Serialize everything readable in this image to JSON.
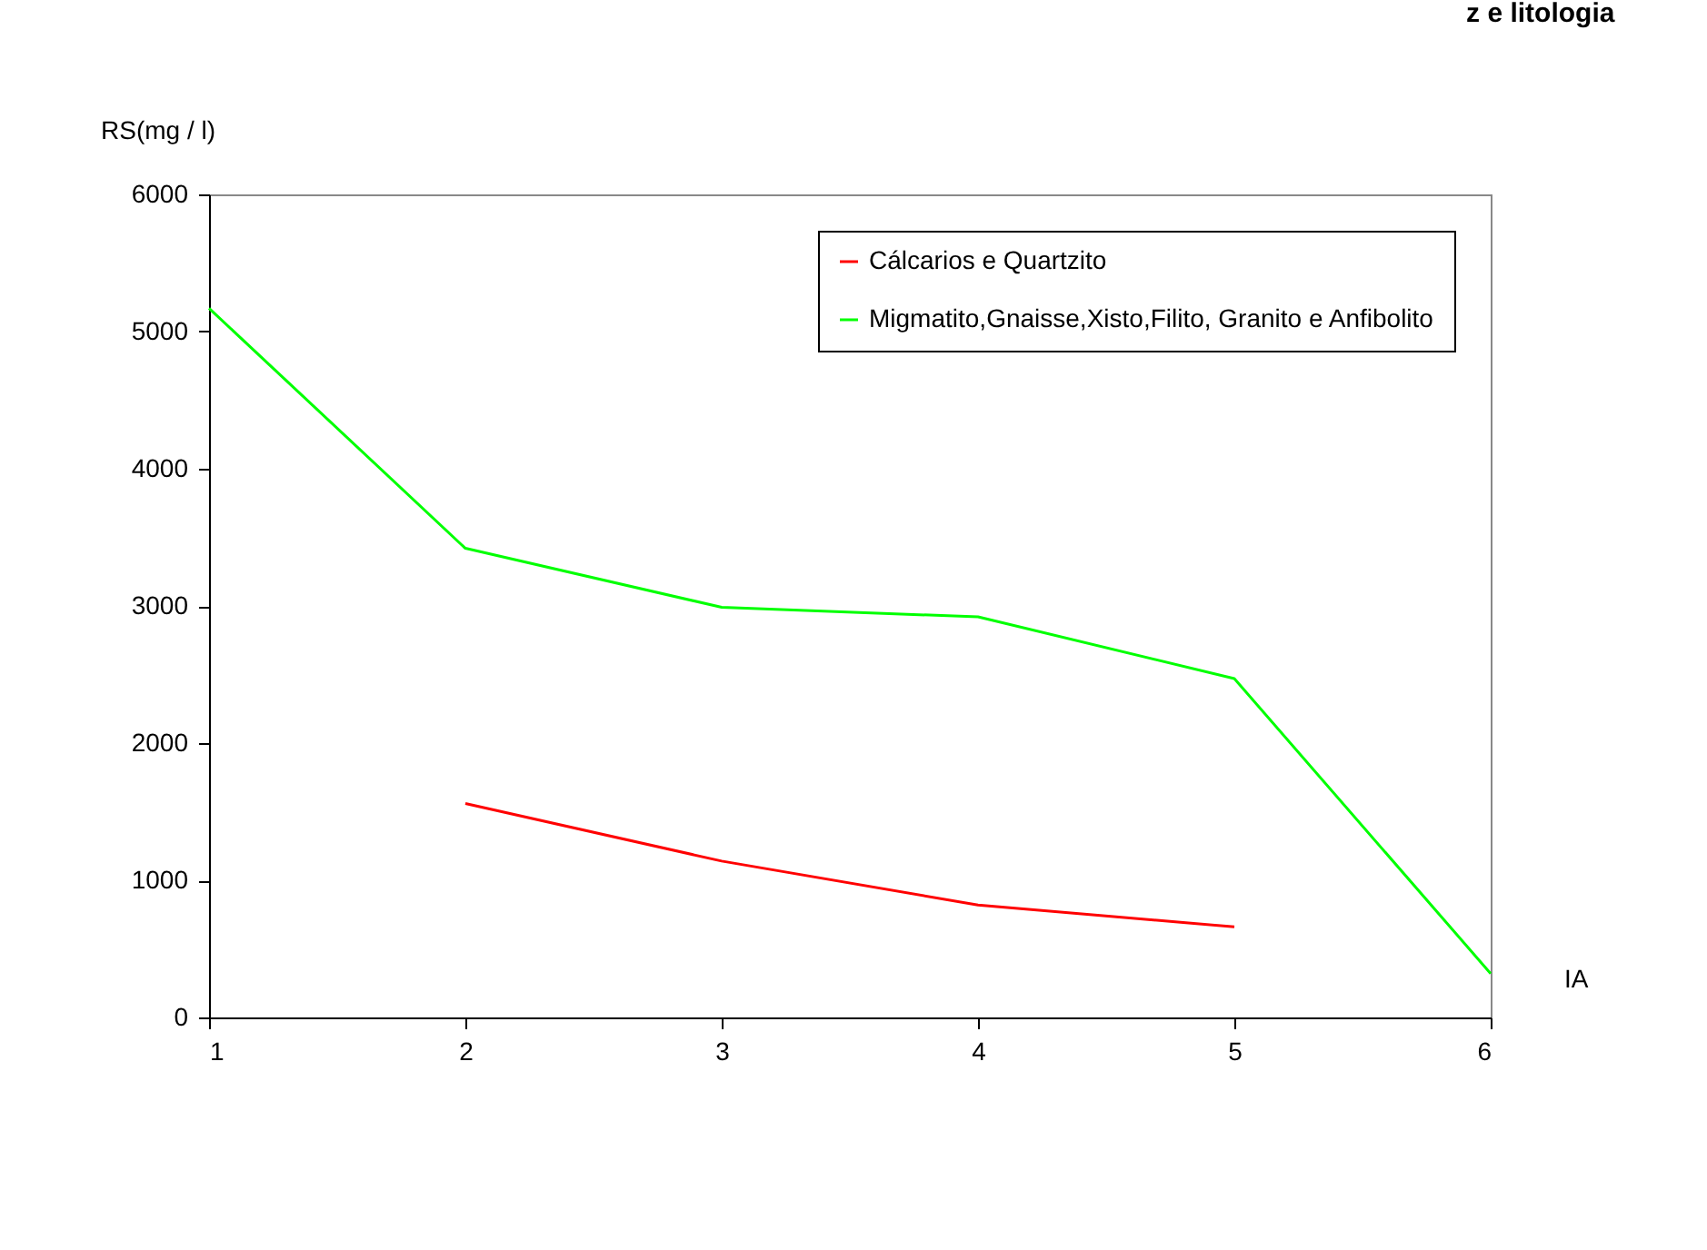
{
  "chart_data": {
    "type": "line",
    "title": "z e litologia",
    "xlabel": "IA",
    "ylabel": "RS(mg / l)",
    "x": [
      1,
      2,
      3,
      4,
      5,
      6
    ],
    "series": [
      {
        "name": "Cálcarios e Quartzito",
        "color": "#ff0000",
        "values": [
          null,
          1560,
          1140,
          820,
          660,
          null
        ]
      },
      {
        "name": "Migmatito,Gnaisse,Xisto,Filito, Granito e Anfibolito",
        "color": "#00ff00",
        "values": [
          5170,
          3420,
          2990,
          2920,
          2470,
          320
        ]
      }
    ],
    "xlim": [
      1,
      6
    ],
    "xticks": [
      1,
      2,
      3,
      4,
      5,
      6
    ],
    "ylim": [
      0,
      6000
    ],
    "yticks": [
      0,
      1000,
      2000,
      3000,
      4000,
      5000,
      6000
    ],
    "grid": false,
    "legend": "top right",
    "line_style": "solid",
    "marker": "none"
  }
}
